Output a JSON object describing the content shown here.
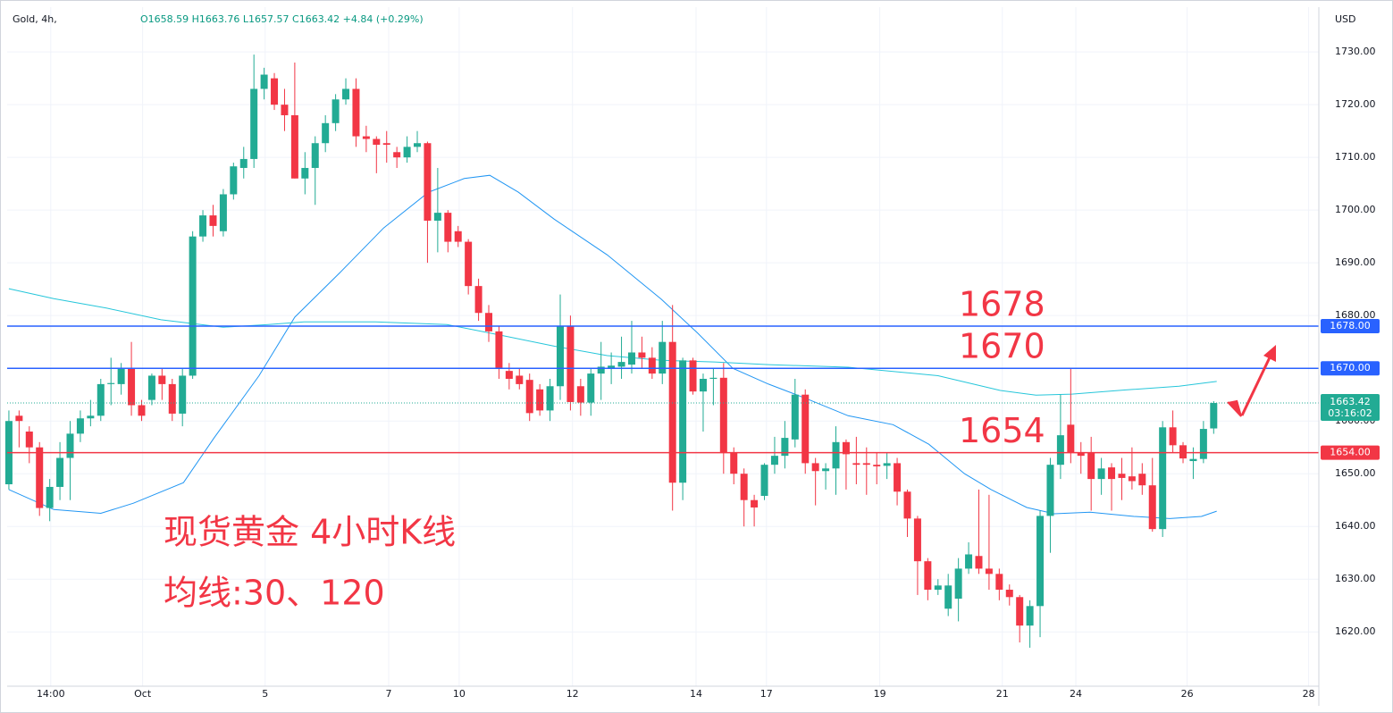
{
  "chart_data": {
    "type": "candlestick",
    "header": {
      "symbol": "Gold, 4h,",
      "ohlc": "O1658.59  H1663.76  L1657.57  C1663.42  +4.84 (+0.29%)",
      "currency": "USD"
    },
    "up_color": "#22ab94",
    "down_color": "#f23645",
    "open": [
      1648,
      1661,
      1658,
      1655,
      1643.5,
      1647.5,
      1653,
      1657.6,
      1660.5,
      1661,
      1667,
      1667,
      1670,
      1663,
      1664,
      1668.6,
      1667,
      1661.4,
      1668.6,
      1695,
      1699,
      1696,
      1703,
      1708,
      1709.7,
      1723,
      1725,
      1720,
      1718,
      1706,
      1708,
      1712.7,
      1716.5,
      1721,
      1723,
      1714,
      1713.5,
      1712.7,
      1711,
      1710,
      1712,
      1712.7,
      1698,
      1699.5,
      1696,
      1694,
      1685.6,
      1680.5,
      1677,
      1669.5,
      1668.6,
      1667.8,
      1666,
      1662,
      1666.6,
      1678,
      1666.6,
      1663.5,
      1669,
      1670,
      1670.3,
      1670.7,
      1673,
      1672,
      1669,
      1675,
      1648.3,
      1671.5,
      1665.6,
      1668,
      1668.2,
      1654,
      1650,
      1645,
      1645.8,
      1651.7,
      1653.4,
      1656.5,
      1665,
      1652,
      1650.5,
      1651,
      1656,
      1652,
      1652,
      1651.7,
      1651.5,
      1652,
      1646.6,
      1641.5,
      1633.4,
      1628,
      1624.4,
      1626.3,
      1632,
      1634.4,
      1632,
      1631,
      1628,
      1626.6,
      1621.2,
      1624.9,
      1642,
      1651.7,
      1659.3,
      1654,
      1654,
      1649,
      1651.2,
      1650,
      1649.5,
      1650,
      1647.8,
      1639.5,
      1658.8,
      1655.4,
      1652.4,
      1652.8,
      1658.59
    ],
    "high": [
      1662,
      1662,
      1659,
      1656,
      1649,
      1656,
      1660,
      1662,
      1664,
      1668,
      1672,
      1671,
      1675,
      1664,
      1669,
      1670,
      1668,
      1670,
      1696,
      1700,
      1701,
      1704,
      1709,
      1712,
      1729.5,
      1727,
      1726,
      1723,
      1728,
      1711,
      1714,
      1718,
      1722,
      1725,
      1725,
      1716,
      1714,
      1715,
      1712,
      1714,
      1715,
      1713,
      1708,
      1700,
      1697,
      1694.5,
      1687,
      1682,
      1678,
      1671,
      1670,
      1669,
      1667,
      1668,
      1684,
      1680,
      1668,
      1670,
      1675,
      1673,
      1676,
      1679,
      1676,
      1674,
      1679,
      1682,
      1672,
      1672,
      1669,
      1670,
      1671,
      1655,
      1651,
      1646,
      1652,
      1657,
      1660,
      1668,
      1666,
      1653,
      1652,
      1659,
      1656.5,
      1657,
      1655,
      1654,
      1654,
      1653,
      1647,
      1642,
      1634,
      1630,
      1631,
      1634,
      1637,
      1647,
      1646,
      1632,
      1629,
      1627,
      1626,
      1643,
      1653,
      1665,
      1670,
      1656,
      1657,
      1653,
      1652,
      1653,
      1655,
      1652,
      1653,
      1660,
      1662,
      1656,
      1655,
      1660,
      1663.76
    ],
    "low": [
      1647,
      1655,
      1652,
      1642,
      1641,
      1645,
      1645,
      1656,
      1659,
      1660,
      1663,
      1665,
      1661,
      1660,
      1663,
      1664,
      1660,
      1659,
      1668,
      1694,
      1695,
      1695,
      1702,
      1706,
      1708,
      1721,
      1719,
      1715,
      1706,
      1703,
      1701,
      1711,
      1715,
      1720,
      1712,
      1711,
      1707,
      1709,
      1708,
      1709,
      1711,
      1690,
      1692,
      1692,
      1693,
      1684,
      1679,
      1675,
      1668,
      1666,
      1666,
      1660,
      1661,
      1660,
      1664,
      1662,
      1661,
      1661,
      1664,
      1667,
      1668,
      1669,
      1670,
      1668,
      1667,
      1643,
      1645,
      1665,
      1658,
      1663,
      1650,
      1648,
      1640,
      1640,
      1645,
      1650,
      1651,
      1655,
      1650,
      1644,
      1647,
      1646,
      1647,
      1648,
      1646,
      1648,
      1649,
      1644,
      1638,
      1627,
      1626,
      1627,
      1623,
      1622,
      1631,
      1631,
      1628,
      1626,
      1625,
      1618,
      1617,
      1619,
      1635,
      1649,
      1652,
      1650,
      1643,
      1646,
      1643,
      1645,
      1647,
      1646,
      1639,
      1638,
      1654,
      1652,
      1649,
      1652,
      1657.57
    ],
    "close": [
      1660,
      1660,
      1655,
      1643.5,
      1647.5,
      1653,
      1657.6,
      1660.5,
      1661,
      1667,
      1667.2,
      1670,
      1663,
      1661,
      1668.6,
      1667,
      1661.4,
      1668.6,
      1695,
      1699,
      1697,
      1703,
      1708.3,
      1709.7,
      1723,
      1725.7,
      1720,
      1718,
      1706,
      1708,
      1712.7,
      1716.5,
      1721,
      1723,
      1714,
      1713.5,
      1712.4,
      1712.4,
      1710,
      1712,
      1712.7,
      1698,
      1699.5,
      1694,
      1694,
      1685.6,
      1680.5,
      1677,
      1670,
      1668,
      1667,
      1661.5,
      1662,
      1666.6,
      1678,
      1663.6,
      1663.5,
      1669,
      1670.3,
      1670.5,
      1671.2,
      1673,
      1672,
      1669,
      1675,
      1648.3,
      1671.5,
      1665.6,
      1668,
      1668.2,
      1654,
      1650,
      1645,
      1643.6,
      1651.7,
      1653.4,
      1656.8,
      1665,
      1652,
      1650.5,
      1651,
      1656,
      1653.7,
      1651.7,
      1651.7,
      1651.4,
      1652,
      1646.6,
      1641.5,
      1633.4,
      1628,
      1628.8,
      1628.8,
      1632,
      1634.7,
      1632,
      1631,
      1628,
      1626.6,
      1621.2,
      1624.9,
      1642,
      1651.7,
      1657.3,
      1654,
      1653.4,
      1649,
      1651,
      1649,
      1649.2,
      1648.6,
      1647.8,
      1639.5,
      1658.8,
      1655.4,
      1652.9,
      1652.8,
      1658.5,
      1663.42
    ],
    "moving_averages": [
      {
        "color": "#2196f3",
        "x": [
          0,
          4.4,
          9,
          12.2,
          17.1,
          20.1,
          24.5,
          28,
          32.4,
          36.7,
          41.1,
          44.6,
          47.1,
          49.9,
          53.4,
          58.6,
          63.9,
          67.4,
          70.9,
          74.4,
          77.9,
          82.2,
          86.6,
          90.1,
          93.6,
          96.2,
          99.7,
          102.4,
          105.9,
          110.2,
          113.7,
          116.8,
          118.3
        ],
        "values": [
          1647,
          1643.2,
          1642.5,
          1644.4,
          1648.3,
          1656.8,
          1668.6,
          1679.7,
          1688.1,
          1696.6,
          1703.4,
          1706,
          1706.6,
          1703.4,
          1698.3,
          1691.5,
          1683.1,
          1676.8,
          1670,
          1667,
          1664.4,
          1661,
          1659.3,
          1655.6,
          1650,
          1647,
          1643.6,
          1642.4,
          1642.7,
          1641.9,
          1641.5,
          1641.9,
          1642.9
        ]
      },
      {
        "color": "#26c6da",
        "x": [
          0,
          4.4,
          9.6,
          14.9,
          21,
          25.4,
          28.9,
          35.9,
          42.9,
          48.1,
          53.4,
          58.6,
          63.9,
          69.1,
          74.4,
          82.2,
          91,
          97.1,
          100.6,
          104.1,
          109.4,
          114.6,
          118.3
        ],
        "values": [
          1685.1,
          1683.2,
          1681.4,
          1679.2,
          1677.8,
          1678.3,
          1678.8,
          1678.8,
          1678.3,
          1676.3,
          1674.2,
          1672.4,
          1671.5,
          1671.2,
          1670.7,
          1670.2,
          1668.6,
          1665.8,
          1664.9,
          1665.1,
          1665.9,
          1666.6,
          1667.5
        ]
      }
    ],
    "hlines": [
      {
        "value": 1678,
        "label": "1678.00",
        "annotation": "1678",
        "color": "#2962ff"
      },
      {
        "value": 1670,
        "label": "1670.00",
        "annotation": "1670",
        "color": "#2962ff"
      },
      {
        "value": 1654,
        "label": "1654.00",
        "annotation": "1654",
        "color": "#f23645"
      }
    ],
    "last_price": {
      "value": 1663.42,
      "label": "1663.42",
      "countdown": "03:16:02"
    },
    "notes": [
      "现货黄金 4小时K线",
      "均线:30、120"
    ],
    "xlim": [
      -0.17,
      128.3
    ],
    "xticks": [
      {
        "value": 4.1,
        "label": "14:00"
      },
      {
        "value": 13.1,
        "label": "Oct"
      },
      {
        "value": 25.1,
        "label": "5"
      },
      {
        "value": 37.2,
        "label": "7"
      },
      {
        "value": 44.1,
        "label": "10"
      },
      {
        "value": 55.2,
        "label": "12"
      },
      {
        "value": 67.3,
        "label": "14"
      },
      {
        "value": 74.2,
        "label": "17"
      },
      {
        "value": 85.3,
        "label": "19"
      },
      {
        "value": 97.3,
        "label": "21"
      },
      {
        "value": 104.5,
        "label": "24"
      },
      {
        "value": 115.4,
        "label": "26"
      },
      {
        "value": 127.3,
        "label": "28"
      }
    ],
    "ylim": [
      1609.7,
      1738.5
    ],
    "yticks": [
      {
        "value": 1620,
        "label": "1620.00"
      },
      {
        "value": 1630,
        "label": "1630.00"
      },
      {
        "value": 1640,
        "label": "1640.00"
      },
      {
        "value": 1650,
        "label": "1650.00"
      },
      {
        "value": 1660,
        "label": "1660.00"
      },
      {
        "value": 1670,
        "label": "1670.00"
      },
      {
        "value": 1680,
        "label": "1680.00"
      },
      {
        "value": 1690,
        "label": "1690.00"
      },
      {
        "value": 1700,
        "label": "1700.00"
      },
      {
        "value": 1710,
        "label": "1710.00"
      },
      {
        "value": 1720,
        "label": "1720.00"
      },
      {
        "value": 1730,
        "label": "1730.00"
      }
    ],
    "grid": true
  }
}
